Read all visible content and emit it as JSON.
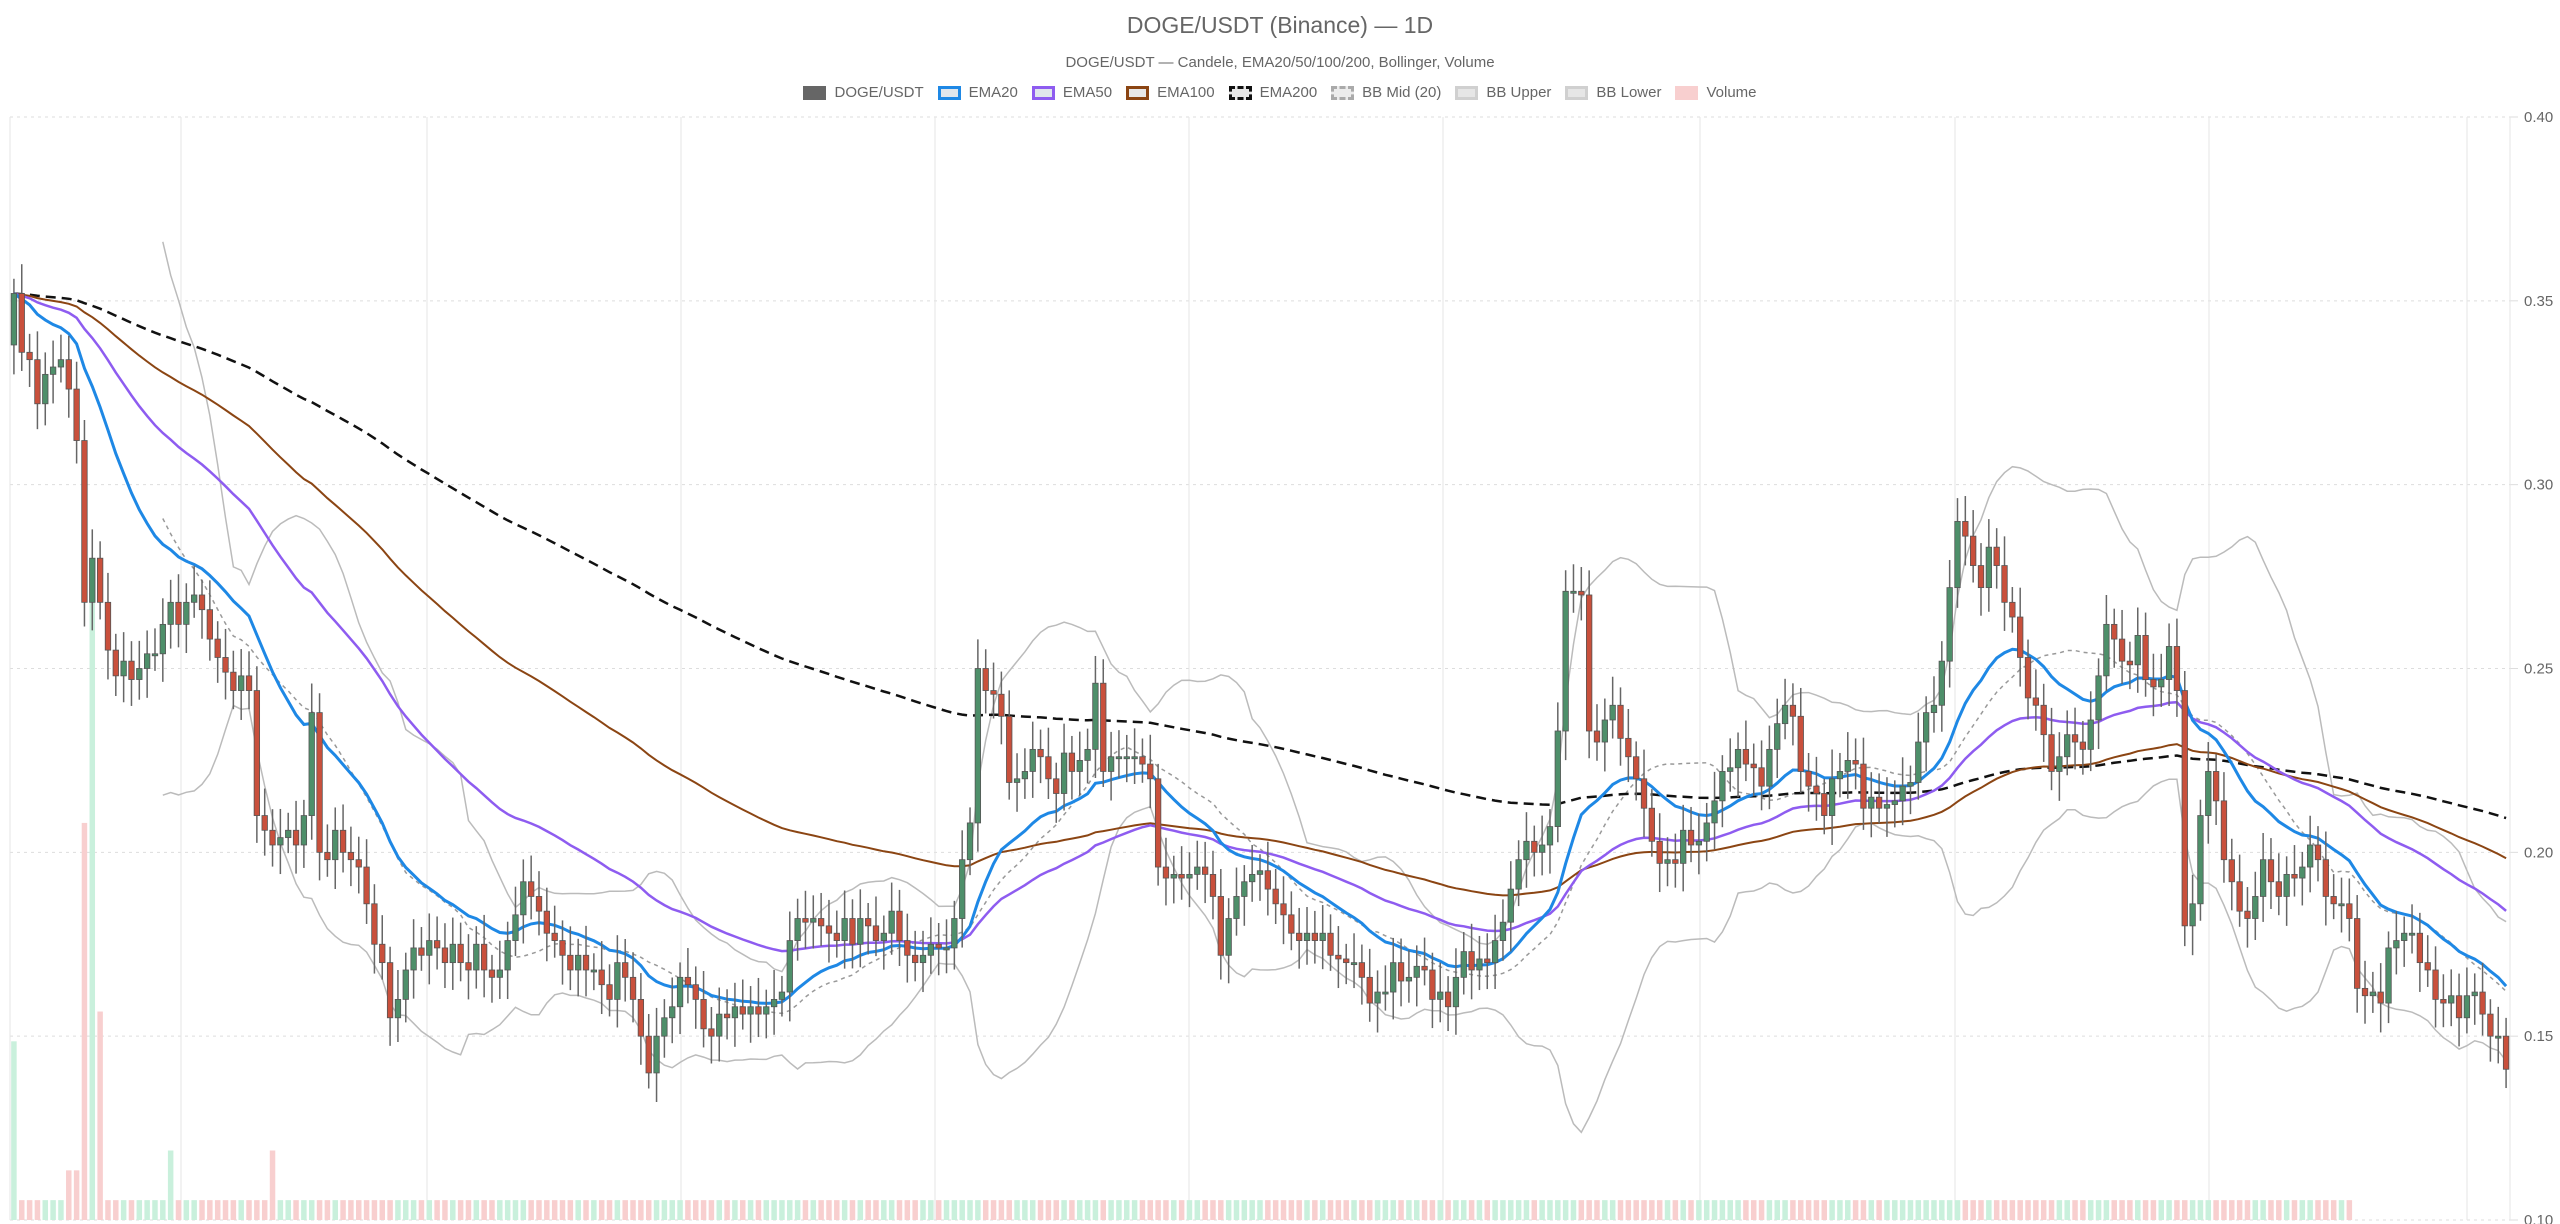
{
  "header": {
    "title": "DOGE/USDT (Binance) — 1D",
    "subtitle": "DOGE/USDT — Candele, EMA20/50/100/200, Bollinger, Volume"
  },
  "legend": [
    {
      "label": "DOGE/USDT",
      "fill": "#666666",
      "border": "#666666",
      "dash": false
    },
    {
      "label": "EMA20",
      "fill": "#e0e6ec",
      "border": "#1e88e5",
      "dash": false
    },
    {
      "label": "EMA50",
      "fill": "#e0e6ec",
      "border": "#8e5cf0",
      "dash": false
    },
    {
      "label": "EMA100",
      "fill": "#e8e8e8",
      "border": "#8b4513",
      "dash": false
    },
    {
      "label": "EMA200",
      "fill": "#e8e8e8",
      "border": "#111111",
      "dash": true
    },
    {
      "label": "BB Mid (20)",
      "fill": "#ececec",
      "border": "#aaaaaa",
      "dash": true
    },
    {
      "label": "BB Upper",
      "fill": "#e6e6e6",
      "border": "#d0d0d0",
      "dash": false
    },
    {
      "label": "BB Lower",
      "fill": "#e6e6e6",
      "border": "#d0d0d0",
      "dash": false
    },
    {
      "label": "Volume",
      "fill": "#f8cfcf",
      "border": "#f8cfcf",
      "dash": false
    }
  ],
  "colors": {
    "up": "#4e8f6a",
    "down": "#c9503c",
    "wick": "#666666",
    "vol_up": "#c9f0dc",
    "vol_down": "#f8cfcf",
    "ema20": "#1e88e5",
    "ema50": "#8e5cf0",
    "ema100": "#8b4513",
    "ema200": "#111111",
    "bb": "#bbbbbb",
    "bb_mid": "#999999",
    "grid": "#e5e5e5"
  },
  "chart_data": {
    "type": "candlestick",
    "title": "DOGE/USDT (Binance) — 1D",
    "subtitle": "DOGE/USDT — Candele, EMA20/50/100/200, Bollinger, Volume",
    "xlabel": "",
    "ylabel": "",
    "ylim": [
      0.1,
      0.4
    ],
    "y_ticks": [
      "0.40",
      "0.35",
      "0.30",
      "0.25",
      "0.20",
      "0.15",
      "0.10"
    ],
    "y_axis_position": "right",
    "grid": true,
    "legend_position": "top",
    "series": [
      "DOGE/USDT",
      "EMA20",
      "EMA50",
      "EMA100",
      "EMA200",
      "BB Mid (20)",
      "BB Upper",
      "BB Lower",
      "Volume"
    ],
    "close": [
      0.352,
      0.336,
      0.334,
      0.322,
      0.33,
      0.332,
      0.334,
      0.326,
      0.312,
      0.268,
      0.28,
      0.268,
      0.255,
      0.248,
      0.252,
      0.247,
      0.25,
      0.254,
      0.254,
      0.262,
      0.268,
      0.262,
      0.268,
      0.27,
      0.266,
      0.258,
      0.253,
      0.249,
      0.244,
      0.248,
      0.244,
      0.21,
      0.206,
      0.202,
      0.204,
      0.206,
      0.202,
      0.21,
      0.238,
      0.2,
      0.198,
      0.206,
      0.2,
      0.198,
      0.196,
      0.186,
      0.175,
      0.17,
      0.155,
      0.16,
      0.168,
      0.174,
      0.172,
      0.176,
      0.174,
      0.17,
      0.175,
      0.17,
      0.168,
      0.175,
      0.168,
      0.166,
      0.168,
      0.176,
      0.183,
      0.192,
      0.188,
      0.184,
      0.178,
      0.176,
      0.172,
      0.168,
      0.172,
      0.168,
      0.168,
      0.164,
      0.16,
      0.17,
      0.166,
      0.16,
      0.15,
      0.14,
      0.15,
      0.155,
      0.158,
      0.166,
      0.164,
      0.16,
      0.152,
      0.15,
      0.156,
      0.155,
      0.158,
      0.156,
      0.158,
      0.156,
      0.158,
      0.16,
      0.162,
      0.176,
      0.182,
      0.181,
      0.182,
      0.18,
      0.178,
      0.176,
      0.182,
      0.175,
      0.182,
      0.18,
      0.176,
      0.178,
      0.184,
      0.176,
      0.172,
      0.17,
      0.172,
      0.175,
      0.174,
      0.174,
      0.182,
      0.198,
      0.208,
      0.25,
      0.244,
      0.243,
      0.237,
      0.219,
      0.22,
      0.222,
      0.228,
      0.226,
      0.22,
      0.216,
      0.227,
      0.222,
      0.225,
      0.228,
      0.246,
      0.222,
      0.226,
      0.226,
      0.226,
      0.226,
      0.224,
      0.22,
      0.196,
      0.193,
      0.194,
      0.193,
      0.194,
      0.196,
      0.194,
      0.188,
      0.172,
      0.182,
      0.188,
      0.192,
      0.194,
      0.195,
      0.19,
      0.186,
      0.183,
      0.178,
      0.176,
      0.178,
      0.176,
      0.178,
      0.172,
      0.171,
      0.17,
      0.17,
      0.166,
      0.159,
      0.162,
      0.162,
      0.17,
      0.165,
      0.166,
      0.169,
      0.168,
      0.16,
      0.162,
      0.158,
      0.166,
      0.173,
      0.168,
      0.171,
      0.17,
      0.176,
      0.181,
      0.19,
      0.198,
      0.203,
      0.2,
      0.202,
      0.207,
      0.233,
      0.271,
      0.271,
      0.27,
      0.233,
      0.23,
      0.236,
      0.24,
      0.231,
      0.226,
      0.22,
      0.212,
      0.203,
      0.197,
      0.198,
      0.197,
      0.206,
      0.202,
      0.203,
      0.208,
      0.214,
      0.222,
      0.223,
      0.228,
      0.224,
      0.223,
      0.218,
      0.228,
      0.235,
      0.24,
      0.237,
      0.222,
      0.218,
      0.216,
      0.21,
      0.22,
      0.222,
      0.225,
      0.224,
      0.212,
      0.215,
      0.212,
      0.213,
      0.214,
      0.218,
      0.219,
      0.23,
      0.238,
      0.24,
      0.252,
      0.272,
      0.29,
      0.286,
      0.278,
      0.272,
      0.283,
      0.278,
      0.268,
      0.264,
      0.253,
      0.242,
      0.24,
      0.232,
      0.222,
      0.226,
      0.232,
      0.23,
      0.228,
      0.236,
      0.248,
      0.262,
      0.258,
      0.252,
      0.251,
      0.259,
      0.247,
      0.245,
      0.247,
      0.256,
      0.244,
      0.18,
      0.186,
      0.21,
      0.222,
      0.214,
      0.198,
      0.192,
      0.184,
      0.182,
      0.188,
      0.198,
      0.192,
      0.188,
      0.194,
      0.193,
      0.196,
      0.202,
      0.198,
      0.188,
      0.186,
      0.186,
      0.182,
      0.163,
      0.161,
      0.162,
      0.159,
      0.174,
      0.176,
      0.178,
      0.178,
      0.17,
      0.168,
      0.16,
      0.159,
      0.161,
      0.155,
      0.161,
      0.162,
      0.156,
      0.15,
      0.15,
      0.141
    ],
    "volume_relative": [
      0.18,
      0.02,
      0.02,
      0.02,
      0.02,
      0.02,
      0.02,
      0.05,
      0.05,
      0.4,
      0.63,
      0.21,
      0.02,
      0.02,
      0.02,
      0.02,
      0.02,
      0.02,
      0.02,
      0.02,
      0.07,
      0.02,
      0.02,
      0.02,
      0.02,
      0.02,
      0.02,
      0.02,
      0.02,
      0.02,
      0.02,
      0.02,
      0.02,
      0.07,
      0.02,
      0.02,
      0.02,
      0.02,
      0.02,
      0.02,
      0.02,
      0.02,
      0.02,
      0.02,
      0.02,
      0.02,
      0.02,
      0.02,
      0.02,
      0.02,
      0.02,
      0.02,
      0.02,
      0.02,
      0.02,
      0.02,
      0.02,
      0.02,
      0.02,
      0.02,
      0.02,
      0.02,
      0.02,
      0.02,
      0.02,
      0.02,
      0.02,
      0.02,
      0.02,
      0.02,
      0.02,
      0.02,
      0.02,
      0.02,
      0.02,
      0.02,
      0.02,
      0.02,
      0.02,
      0.02,
      0.02,
      0.02,
      0.02,
      0.02,
      0.02,
      0.02,
      0.02,
      0.02,
      0.02,
      0.02,
      0.02,
      0.02,
      0.02,
      0.02,
      0.02,
      0.02,
      0.02,
      0.02,
      0.02,
      0.02,
      0.02,
      0.02,
      0.02,
      0.02,
      0.02,
      0.02,
      0.02,
      0.02,
      0.02,
      0.02,
      0.02,
      0.02,
      0.02,
      0.02,
      0.02,
      0.02,
      0.02,
      0.02,
      0.02,
      0.02,
      0.02,
      0.02,
      0.02,
      0.02,
      0.02,
      0.02,
      0.02,
      0.02,
      0.02,
      0.02,
      0.02,
      0.02,
      0.02,
      0.02,
      0.02,
      0.02,
      0.02,
      0.02,
      0.02,
      0.02,
      0.02,
      0.02,
      0.02,
      0.02,
      0.02,
      0.02,
      0.02,
      0.02,
      0.02,
      0.02,
      0.02,
      0.02,
      0.02,
      0.02,
      0.02,
      0.02,
      0.02,
      0.02,
      0.02,
      0.02,
      0.02,
      0.02,
      0.02,
      0.02,
      0.02,
      0.02,
      0.02,
      0.02,
      0.02,
      0.02,
      0.02,
      0.02,
      0.02,
      0.02,
      0.02,
      0.02,
      0.02,
      0.02,
      0.02,
      0.02,
      0.02,
      0.02,
      0.02,
      0.02,
      0.02,
      0.02,
      0.02,
      0.02,
      0.02,
      0.02,
      0.02,
      0.02,
      0.02,
      0.02,
      0.02,
      0.02,
      0.02,
      0.02,
      0.02,
      0.02,
      0.02,
      0.02,
      0.02,
      0.02,
      0.02,
      0.02,
      0.02,
      0.02,
      0.02,
      0.02,
      0.02,
      0.02,
      0.02,
      0.02,
      0.02,
      0.02,
      0.02,
      0.02,
      0.02,
      0.02,
      0.02,
      0.02,
      0.02,
      0.02,
      0.02,
      0.02,
      0.02,
      0.02,
      0.02,
      0.02,
      0.02,
      0.02,
      0.02,
      0.02,
      0.02,
      0.02,
      0.02,
      0.02,
      0.02,
      0.02,
      0.02,
      0.02,
      0.02,
      0.02,
      0.02,
      0.02,
      0.02,
      0.02,
      0.02,
      0.02,
      0.02,
      0.02,
      0.02,
      0.02,
      0.02,
      0.02,
      0.02,
      0.02,
      0.02,
      0.02,
      0.02,
      0.02,
      0.02,
      0.02,
      0.02,
      0.02,
      0.02,
      0.02,
      0.02,
      0.02,
      0.02,
      0.02,
      0.02,
      0.02,
      0.02,
      0.02,
      0.02,
      0.02,
      0.02,
      0.02,
      0.02,
      0.02,
      0.02,
      0.02,
      0.02,
      0.02,
      0.02,
      0.02,
      0.02,
      0.02,
      0.02,
      0.02,
      0.02,
      0.02,
      0.02,
      0.02,
      0.02,
      0.02,
      0.02
    ]
  }
}
